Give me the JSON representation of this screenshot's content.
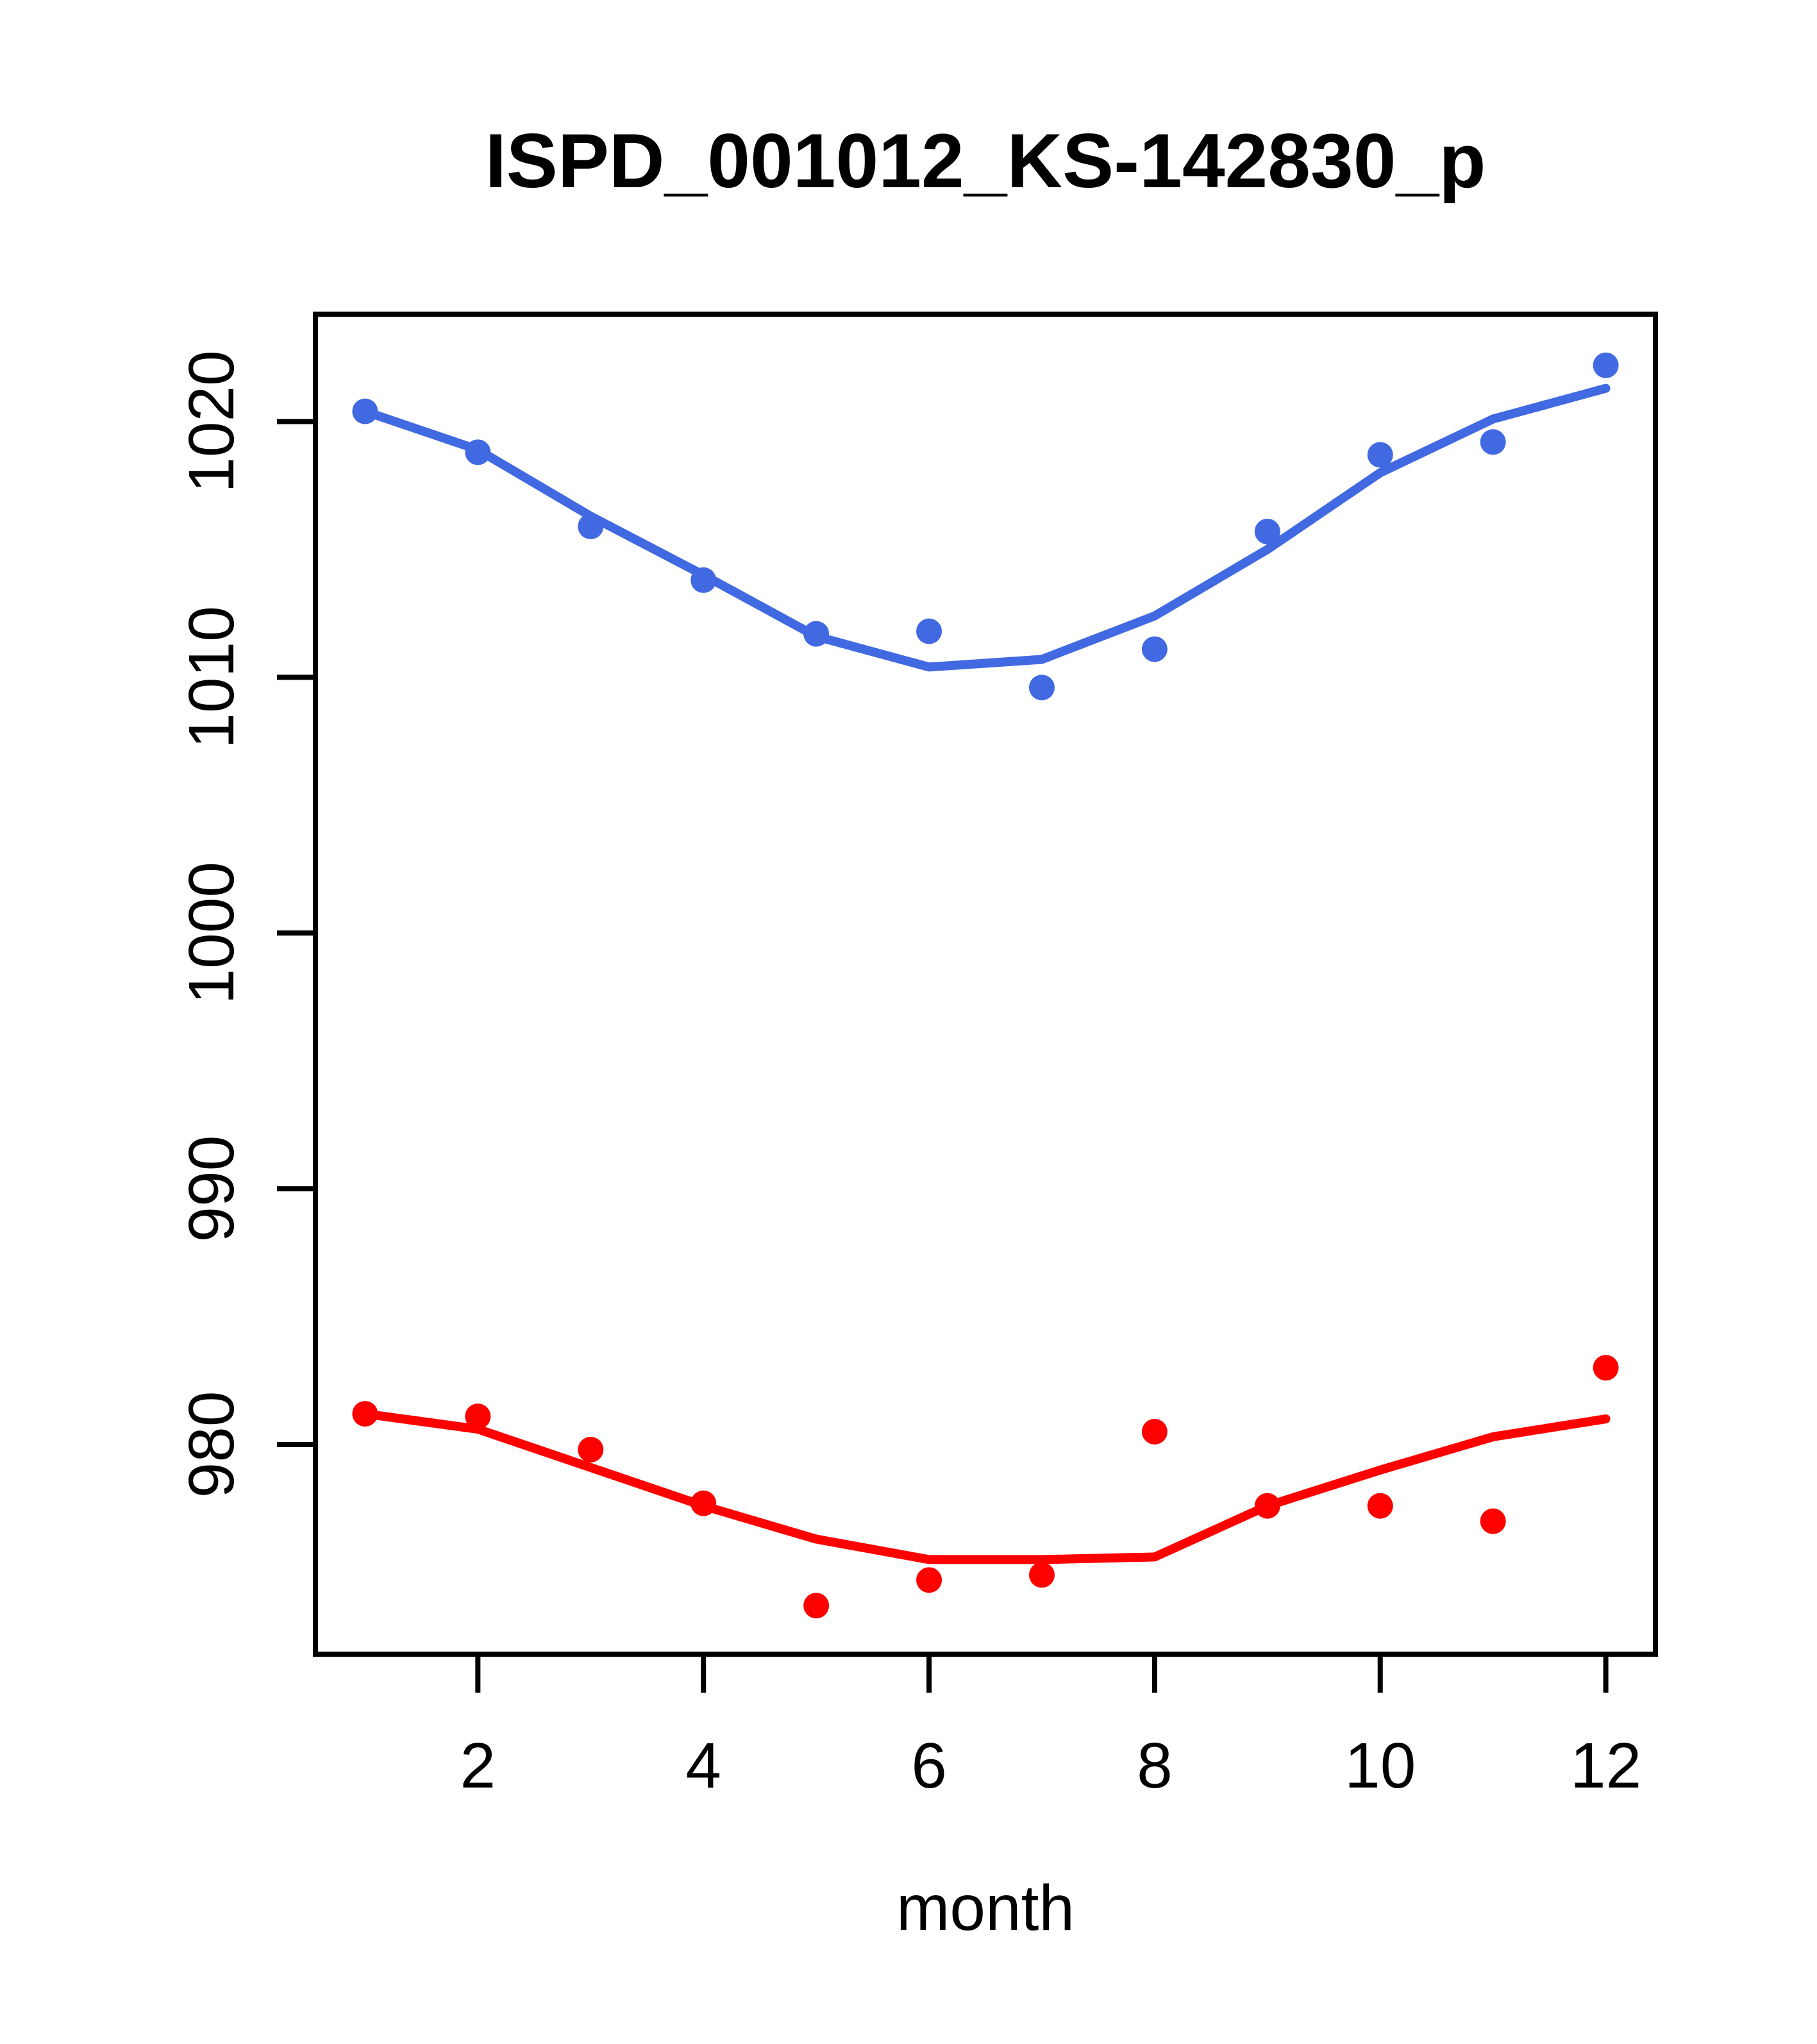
{
  "figure": {
    "background": "#ffffff",
    "plot_box_color": "#000000"
  },
  "chart_data": {
    "type": "scatter",
    "title": "ISPD_001012_KS-142830_p",
    "xlabel": "month",
    "ylabel": "",
    "x": [
      1,
      2,
      3,
      4,
      5,
      6,
      7,
      8,
      9,
      10,
      11,
      12
    ],
    "xlim": [
      0.56,
      12.44
    ],
    "ylim": [
      971.8,
      1024.2
    ],
    "x_tick_values": [
      2,
      4,
      6,
      8,
      10,
      12
    ],
    "x_tick_labels": [
      "2",
      "4",
      "6",
      "8",
      "10",
      "12"
    ],
    "y_tick_values": [
      980,
      990,
      1000,
      1010,
      1020
    ],
    "y_tick_labels": [
      "980",
      "990",
      "1000",
      "1010",
      "1020"
    ],
    "grid": false,
    "legend": "none",
    "series": [
      {
        "name": "blue-series",
        "color": "#4169E1",
        "marker": "circle",
        "points": [
          1020.4,
          1018.8,
          1015.9,
          1013.8,
          1011.7,
          1011.8,
          1009.6,
          1011.1,
          1015.7,
          1018.7,
          1019.2,
          1022.2
        ],
        "loess": [
          1020.4,
          1018.9,
          1016.3,
          1014.0,
          1011.6,
          1010.4,
          1010.7,
          1012.4,
          1015.0,
          1018.0,
          1020.1,
          1021.3
        ]
      },
      {
        "name": "red-series",
        "color": "#FF0000",
        "marker": "circle",
        "points": [
          981.2,
          981.1,
          979.8,
          977.7,
          973.7,
          974.7,
          974.9,
          980.5,
          977.6,
          977.6,
          977.0,
          983.0
        ],
        "loess": [
          981.2,
          980.6,
          979.1,
          977.6,
          976.3,
          975.5,
          975.5,
          975.6,
          977.6,
          979.0,
          980.3,
          981.0
        ]
      }
    ]
  }
}
